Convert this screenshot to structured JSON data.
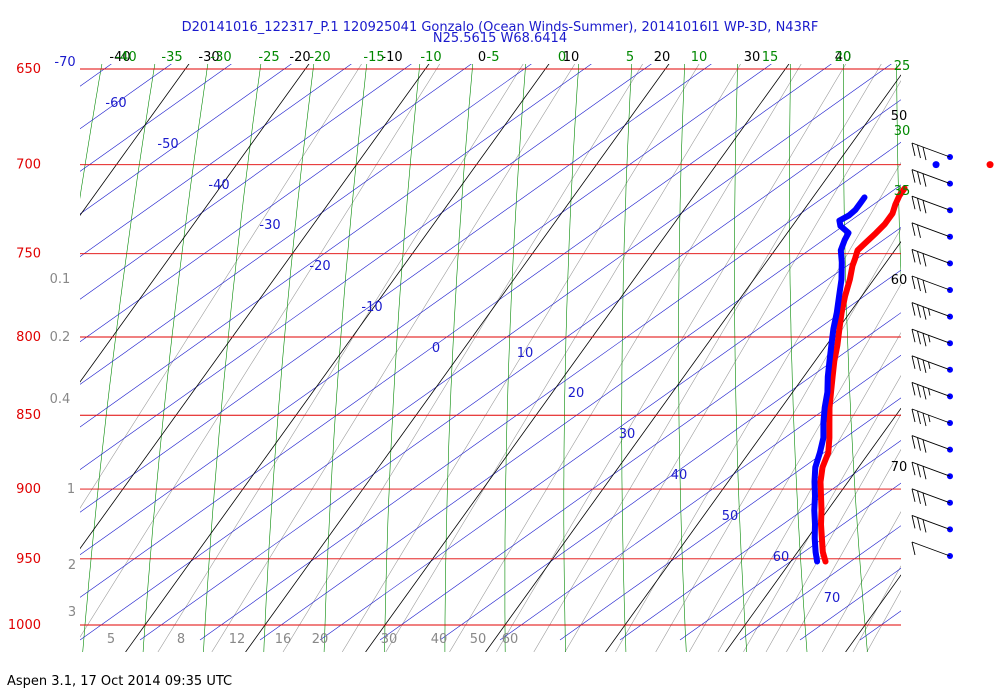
{
  "title_line1": "D20141016_122317_P.1 120925041 Gonzalo (Ocean Winds-Summer), 20141016I1 WP-3D, N43RF",
  "title_line2": "N25.5615 W68.6414",
  "footer": "Aspen 3.1, 17 Oct 2014  09:35 UTC",
  "colors": {
    "isobar": "#e00000",
    "isotherm": "#000000",
    "dry_adiabat": "#008800",
    "moist_adiabat": "#1a1acc",
    "mixing_ratio": "#999999",
    "temperature": "#ff0000",
    "dewpoint": "#0000ff"
  },
  "chart_data": {
    "type": "line",
    "subtype": "skew-T log-P",
    "pressure_levels": [
      "650",
      "700",
      "750",
      "800",
      "850",
      "900",
      "950",
      "1000"
    ],
    "pressure_range": [
      650,
      1000
    ],
    "isotherm_labels": [
      "-40",
      "-30",
      "-20",
      "-10",
      "0",
      "10",
      "20",
      "30",
      "40",
      "50",
      "60",
      "70"
    ],
    "dry_adiabat_labels": [
      "-40",
      "-35",
      "-30",
      "-25",
      "-20",
      "-15",
      "-10",
      "-5",
      "0",
      "5",
      "10",
      "15",
      "20",
      "25",
      "30",
      "35"
    ],
    "moist_adiabat_labels": [
      "-70",
      "-60",
      "-50",
      "-40",
      "-30",
      "-20",
      "-10",
      "0",
      "10",
      "20",
      "30",
      "40",
      "50",
      "60",
      "70"
    ],
    "mixing_ratio_labels": [
      "0.1",
      "0.2",
      "0.4",
      "1",
      "2",
      "3",
      "5",
      "8",
      "12",
      "16",
      "20",
      "30",
      "40",
      "50",
      "60"
    ],
    "series": [
      {
        "variable": "temperature",
        "pressure": [
          952,
          945,
          935,
          925,
          915,
          905,
          895,
          885,
          875,
          865,
          855,
          845,
          835,
          825,
          815,
          805,
          795,
          785,
          775,
          765,
          757,
          753,
          748,
          744,
          738,
          733,
          727,
          722,
          717,
          713
        ],
        "values": [
          22.9,
          22.1,
          21.2,
          20.3,
          19.5,
          18.6,
          17.7,
          17.0,
          16.6,
          15.8,
          14.9,
          14.0,
          13.2,
          12.4,
          11.6,
          10.9,
          10.1,
          9.3,
          8.6,
          8.0,
          7.4,
          7.2,
          6.9,
          7.1,
          7.4,
          7.6,
          7.6,
          7.3,
          7.1,
          7.1
        ]
      },
      {
        "variable": "dewpoint",
        "pressure": [
          952,
          945,
          935,
          925,
          915,
          905,
          895,
          885,
          875,
          865,
          855,
          845,
          835,
          825,
          815,
          805,
          795,
          785,
          775,
          765,
          755,
          748,
          742,
          738,
          734,
          731,
          728,
          725,
          721,
          718
        ],
        "values": [
          22.2,
          21.5,
          20.6,
          19.8,
          18.9,
          18.1,
          17.2,
          16.4,
          15.9,
          15.3,
          14.4,
          13.6,
          12.9,
          12.0,
          11.2,
          10.4,
          9.6,
          8.9,
          8.1,
          7.3,
          6.3,
          5.5,
          5.2,
          5.1,
          4.0,
          3.6,
          4.1,
          4.3,
          4.3,
          4.3
        ]
      }
    ],
    "top_markers": [
      {
        "variable": "temperature",
        "pressure": 700,
        "value": 12.8
      },
      {
        "variable": "dewpoint",
        "pressure": 700,
        "value": 8.3
      }
    ],
    "wind_barbs": [
      {
        "pressure": 700,
        "speed_kt": 30
      },
      {
        "pressure": 715,
        "speed_kt": 30
      },
      {
        "pressure": 730,
        "speed_kt": 30
      },
      {
        "pressure": 745,
        "speed_kt": 20
      },
      {
        "pressure": 760,
        "speed_kt": 30
      },
      {
        "pressure": 775,
        "speed_kt": 30
      },
      {
        "pressure": 790,
        "speed_kt": 35
      },
      {
        "pressure": 805,
        "speed_kt": 35
      },
      {
        "pressure": 820,
        "speed_kt": 35
      },
      {
        "pressure": 835,
        "speed_kt": 35
      },
      {
        "pressure": 850,
        "speed_kt": 35
      },
      {
        "pressure": 865,
        "speed_kt": 30
      },
      {
        "pressure": 880,
        "speed_kt": 30
      },
      {
        "pressure": 895,
        "speed_kt": 30
      },
      {
        "pressure": 910,
        "speed_kt": 30
      },
      {
        "pressure": 925,
        "speed_kt": 10
      }
    ]
  }
}
